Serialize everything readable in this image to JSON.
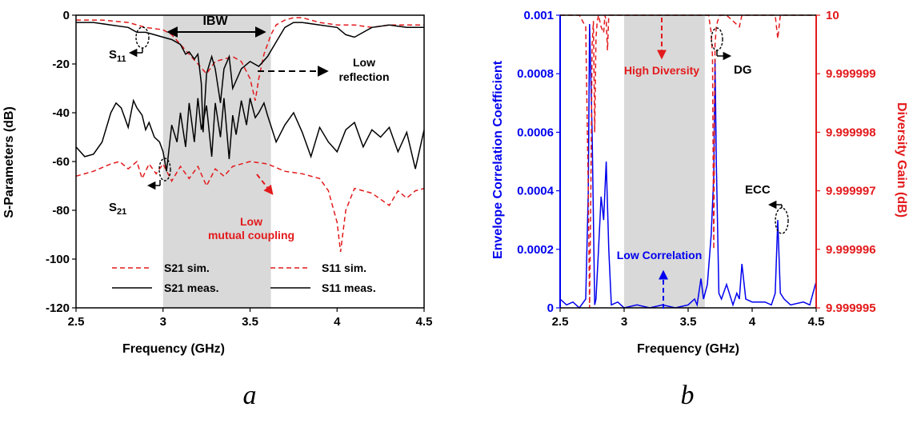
{
  "chart_data": [
    {
      "panel_label": "a",
      "type": "line",
      "xlabel": "Frequency (GHz)",
      "ylabel": "S-Parameters (dB)",
      "xlim": [
        2.5,
        4.5
      ],
      "ylim": [
        -120,
        0
      ],
      "xticks": [
        2.5,
        3,
        3.5,
        4,
        4.5
      ],
      "xtick_labels": [
        "2.5",
        "3",
        "3.5",
        "4",
        "4.5"
      ],
      "yticks": [
        0,
        -20,
        -40,
        -60,
        -80,
        -100,
        -120
      ],
      "shaded_band": [
        3.0,
        3.62
      ],
      "series": [
        {
          "name": "S11 sim.",
          "color": "#e31a1c",
          "dash": "dashed",
          "x": [
            2.5,
            2.65,
            2.8,
            2.9,
            3.0,
            3.05,
            3.1,
            3.15,
            3.2,
            3.25,
            3.3,
            3.35,
            3.4,
            3.45,
            3.5,
            3.53,
            3.55,
            3.58,
            3.62,
            3.65,
            3.7,
            3.75,
            3.8,
            3.9,
            4.0,
            4.1,
            4.2,
            4.3,
            4.4,
            4.5
          ],
          "y": [
            -2,
            -2,
            -3,
            -5,
            -6,
            -8,
            -12,
            -16,
            -20,
            -24,
            -19,
            -18,
            -17,
            -19,
            -26,
            -35,
            -26,
            -16,
            -8,
            -4,
            -2,
            -1,
            -1,
            -3,
            -4,
            -4,
            -5,
            -4,
            -4,
            -4
          ]
        },
        {
          "name": "S11 meas.",
          "color": "#000000",
          "dash": "solid",
          "x": [
            2.5,
            2.6,
            2.7,
            2.8,
            2.85,
            2.9,
            2.95,
            3.0,
            3.05,
            3.1,
            3.13,
            3.15,
            3.18,
            3.2,
            3.22,
            3.23,
            3.25,
            3.28,
            3.3,
            3.33,
            3.35,
            3.38,
            3.4,
            3.45,
            3.5,
            3.55,
            3.6,
            3.65,
            3.7,
            3.75,
            3.8,
            3.9,
            4.0,
            4.05,
            4.1,
            4.2,
            4.3,
            4.4,
            4.5
          ],
          "y": [
            -3,
            -3,
            -4,
            -5,
            -7,
            -7,
            -8,
            -9,
            -10,
            -12,
            -16,
            -15,
            -18,
            -16,
            -28,
            -48,
            -24,
            -17,
            -22,
            -36,
            -22,
            -17,
            -30,
            -22,
            -19,
            -21,
            -17,
            -11,
            -5,
            -3,
            -3,
            -4,
            -5,
            -8,
            -9,
            -5,
            -4,
            -5,
            -5
          ]
        },
        {
          "name": "S21 sim.",
          "color": "#e31a1c",
          "dash": "dashed",
          "x": [
            2.5,
            2.6,
            2.7,
            2.75,
            2.8,
            2.85,
            2.88,
            2.92,
            2.96,
            3.0,
            3.05,
            3.1,
            3.15,
            3.2,
            3.25,
            3.3,
            3.35,
            3.4,
            3.5,
            3.6,
            3.7,
            3.8,
            3.9,
            3.95,
            4.0,
            4.02,
            4.05,
            4.1,
            4.2,
            4.3,
            4.35,
            4.4,
            4.45,
            4.5
          ],
          "y": [
            -66,
            -64,
            -61,
            -60,
            -63,
            -60,
            -67,
            -61,
            -65,
            -61,
            -68,
            -62,
            -67,
            -62,
            -70,
            -63,
            -66,
            -62,
            -60,
            -61,
            -64,
            -65,
            -67,
            -72,
            -85,
            -97,
            -80,
            -71,
            -73,
            -78,
            -72,
            -75,
            -72,
            -71
          ]
        },
        {
          "name": "S21 meas.",
          "color": "#000000",
          "dash": "solid",
          "x": [
            2.5,
            2.55,
            2.6,
            2.65,
            2.7,
            2.73,
            2.76,
            2.8,
            2.83,
            2.85,
            2.88,
            2.9,
            2.92,
            2.95,
            2.98,
            3.0,
            3.02,
            3.05,
            3.08,
            3.1,
            3.13,
            3.15,
            3.18,
            3.2,
            3.22,
            3.25,
            3.28,
            3.3,
            3.33,
            3.35,
            3.38,
            3.4,
            3.42,
            3.45,
            3.48,
            3.5,
            3.53,
            3.55,
            3.58,
            3.6,
            3.65,
            3.7,
            3.75,
            3.8,
            3.85,
            3.9,
            3.95,
            4.0,
            4.05,
            4.1,
            4.15,
            4.2,
            4.25,
            4.3,
            4.35,
            4.4,
            4.45,
            4.5
          ],
          "y": [
            -54,
            -58,
            -57,
            -52,
            -40,
            -36,
            -38,
            -46,
            -35,
            -38,
            -41,
            -47,
            -44,
            -50,
            -52,
            -56,
            -64,
            -45,
            -52,
            -40,
            -54,
            -36,
            -52,
            -34,
            -47,
            -37,
            -58,
            -36,
            -50,
            -34,
            -59,
            -41,
            -49,
            -35,
            -45,
            -34,
            -42,
            -40,
            -36,
            -41,
            -52,
            -45,
            -40,
            -48,
            -58,
            -46,
            -52,
            -56,
            -47,
            -44,
            -54,
            -47,
            -50,
            -46,
            -56,
            -48,
            -63,
            -47
          ]
        }
      ],
      "legend": [
        {
          "label": "S21 sim.",
          "series": "S21 sim."
        },
        {
          "label": "S11 sim.",
          "series": "S11 sim."
        },
        {
          "label": "S21 meas.",
          "series": "S21 meas."
        },
        {
          "label": "S11 meas.",
          "series": "S11 meas."
        }
      ],
      "annotations": {
        "ibw": "IBW",
        "s11": "S",
        "s11_sub": "11",
        "s21": "S",
        "s21_sub": "21",
        "low_reflection_1": "Low",
        "low_reflection_2": "reflection",
        "low_coupling_1": "Low",
        "low_coupling_2": "mutual coupling"
      }
    },
    {
      "panel_label": "b",
      "type": "line",
      "xlabel": "Frequency (GHz)",
      "ylabel": "Envelope Correlation Coefficient",
      "y2label": "Diversity Gain (dB)",
      "xlim": [
        2.5,
        4.5
      ],
      "ylim": [
        0,
        0.001
      ],
      "y2lim": [
        9.999995,
        10
      ],
      "xticks": [
        2.5,
        3,
        3.5,
        4,
        4.5
      ],
      "xtick_labels": [
        "2.5",
        "3",
        "3.5",
        "4",
        "4.5"
      ],
      "yticks": [
        0,
        0.0002,
        0.0004,
        0.0006,
        0.0008,
        0.001
      ],
      "ytick_labels": [
        "0",
        "0.0002",
        "0.0004",
        "0.0006",
        "0.0008",
        "0.001"
      ],
      "y2ticks": [
        9.999995,
        9.999996,
        9.999997,
        9.999998,
        9.999999,
        10
      ],
      "y2tick_labels": [
        "9.999995",
        "9.999996",
        "9.999997",
        "9.999998",
        "9.999999",
        "10"
      ],
      "shaded_band": [
        3.0,
        3.63
      ],
      "colors": {
        "left_axis": "#0000ee",
        "right_axis": "#e31a1c"
      },
      "series": [
        {
          "name": "ECC",
          "axis": "left",
          "color": "#0000ee",
          "dash": "solid",
          "x": [
            2.5,
            2.55,
            2.6,
            2.65,
            2.7,
            2.72,
            2.73,
            2.75,
            2.77,
            2.78,
            2.8,
            2.82,
            2.84,
            2.86,
            2.88,
            2.9,
            2.95,
            3.0,
            3.1,
            3.2,
            3.3,
            3.4,
            3.5,
            3.55,
            3.57,
            3.6,
            3.62,
            3.65,
            3.68,
            3.7,
            3.71,
            3.72,
            3.74,
            3.76,
            3.8,
            3.85,
            3.88,
            3.9,
            3.92,
            3.95,
            4.0,
            4.1,
            4.15,
            4.18,
            4.2,
            4.22,
            4.25,
            4.3,
            4.4,
            4.45,
            4.5
          ],
          "y": [
            3e-05,
            1e-05,
            2e-05,
            0.0,
            3e-05,
            0.0004,
            0.00097,
            0.0006,
            1e-05,
            3e-05,
            0.0002,
            0.00038,
            0.0003,
            0.0005,
            0.0002,
            1e-05,
            2e-05,
            0.0,
            1e-05,
            0.0,
            1e-05,
            0.0,
            1e-05,
            3e-05,
            1e-05,
            0.0001,
            3e-05,
            8e-05,
            0.00025,
            0.00045,
            0.00085,
            0.0005,
            5e-05,
            3e-05,
            8e-05,
            1e-05,
            5e-05,
            3e-05,
            0.00015,
            3e-05,
            2e-05,
            2e-05,
            1e-05,
            5e-05,
            0.0003,
            5e-05,
            3e-05,
            1e-05,
            2e-05,
            1e-05,
            9e-05
          ]
        },
        {
          "name": "DG",
          "axis": "right",
          "color": "#e31a1c",
          "dash": "dashed",
          "x": [
            2.5,
            2.65,
            2.7,
            2.72,
            2.73,
            2.74,
            2.75,
            2.76,
            2.77,
            2.78,
            2.79,
            2.8,
            2.82,
            2.84,
            2.85,
            2.86,
            2.87,
            2.88,
            2.9,
            3.0,
            3.2,
            3.4,
            3.6,
            3.66,
            3.68,
            3.69,
            3.7,
            3.71,
            3.72,
            3.73,
            3.75,
            3.8,
            3.9,
            3.92,
            3.95,
            4.0,
            4.18,
            4.2,
            4.22,
            4.3,
            4.5
          ],
          "y": [
            10,
            10,
            9.9999998,
            9.999997,
            9.999995,
            9.999997,
            9.9999995,
            9.9999999,
            9.999998,
            9.9999996,
            9.9999999,
            10,
            9.9999998,
            9.9999997,
            10,
            9.9999999,
            9.9999994,
            10,
            10,
            10,
            10,
            10,
            10,
            10,
            9.9999997,
            9.9999993,
            9.999996,
            9.9999995,
            9.9999998,
            9.9999999,
            10,
            10,
            9.9999998,
            10,
            10,
            10,
            10,
            9.9999996,
            10,
            10,
            10
          ]
        }
      ],
      "annotations": {
        "high_diversity": "High Diversity",
        "dg": "DG",
        "ecc": "ECC",
        "low_correlation": "Low Correlation"
      }
    }
  ]
}
